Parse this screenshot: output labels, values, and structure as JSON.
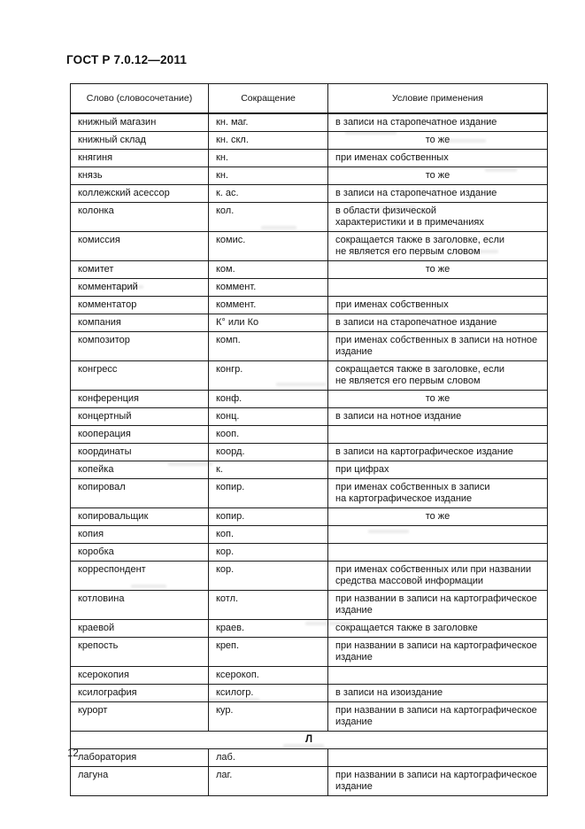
{
  "page": {
    "doc_code": "ГОСТ Р 7.0.12—2011",
    "page_number": "12"
  },
  "table": {
    "headers": [
      "Слово (словосочетание)",
      "Сокращение",
      "Условие применения"
    ],
    "rows": [
      {
        "word": "книжный магазин",
        "abbr": "кн. маг.",
        "condition": "в записи на старопечатное издание"
      },
      {
        "word": "книжный склад",
        "abbr": "кн. скл.",
        "condition": "то же",
        "center": true
      },
      {
        "word": "княгиня",
        "abbr": "кн.",
        "condition": "при именах собственных"
      },
      {
        "word": "князь",
        "abbr": "кн.",
        "condition": "то же",
        "center": true
      },
      {
        "word": "коллежский асессор",
        "abbr": "к. ас.",
        "condition": "в записи на старопечатное издание"
      },
      {
        "word": "колонка",
        "abbr": "кол.",
        "condition": "в области физической\nхарактеристики и в примечаниях"
      },
      {
        "word": "комиссия",
        "abbr": "комис.",
        "condition": "сокращается также в заголовке, если\nне является его первым словом"
      },
      {
        "word": "комитет",
        "abbr": "ком.",
        "condition": "то же",
        "center": true
      },
      {
        "word": "комментарий",
        "abbr": "коммент.",
        "condition": ""
      },
      {
        "word": "комментатор",
        "abbr": "коммент.",
        "condition": "при именах собственных"
      },
      {
        "word": "компания",
        "abbr": "К° или Ко",
        "condition": "в записи на старопечатное издание"
      },
      {
        "word": "композитор",
        "abbr": "комп.",
        "condition": "при именах собственных в записи на нотное\nиздание"
      },
      {
        "word": "конгресс",
        "abbr": "конгр.",
        "condition": "сокращается также в заголовке, если\nне является его первым словом"
      },
      {
        "word": "конференция",
        "abbr": "конф.",
        "condition": "то же",
        "center": true
      },
      {
        "word": "концертный",
        "abbr": "конц.",
        "condition": "в записи на нотное издание"
      },
      {
        "word": "кооперация",
        "abbr": "кооп.",
        "condition": ""
      },
      {
        "word": "координаты",
        "abbr": "коорд.",
        "condition": "в записи на картографическое издание"
      },
      {
        "word": "копейка",
        "abbr": "к.",
        "condition": "при цифрах"
      },
      {
        "word": "копировал",
        "abbr": "копир.",
        "condition": "при именах собственных в записи\nна картографическое издание"
      },
      {
        "word": "копировальщик",
        "abbr": "копир.",
        "condition": "то же",
        "center": true
      },
      {
        "word": "копия",
        "abbr": "коп.",
        "condition": ""
      },
      {
        "word": "коробка",
        "abbr": "кор.",
        "condition": ""
      },
      {
        "word": "корреспондент",
        "abbr": "кор.",
        "condition": "при именах собственных или при названии\nсредства массовой информации"
      },
      {
        "word": "котловина",
        "abbr": "котл.",
        "condition": "при названии в записи на картографическое\nиздание"
      },
      {
        "word": "краевой",
        "abbr": "краев.",
        "condition": "сокращается также в заголовке"
      },
      {
        "word": "крепость",
        "abbr": "креп.",
        "condition": "при названии в записи на картографическое\nиздание"
      },
      {
        "word": "ксерокопия",
        "abbr": "ксерокоп.",
        "condition": ""
      },
      {
        "word": "ксилография",
        "abbr": "ксилогр.",
        "condition": "в записи на изоиздание"
      },
      {
        "word": "курорт",
        "abbr": "кур.",
        "condition": "при названии в записи на картографическое\nиздание"
      },
      {
        "type": "section",
        "label": "Л"
      },
      {
        "word": "лаборатория",
        "abbr": "лаб.",
        "condition": ""
      },
      {
        "word": "лагуна",
        "abbr": "лаг.",
        "condition": "при названии в записи на картографическое\nиздание"
      }
    ]
  }
}
